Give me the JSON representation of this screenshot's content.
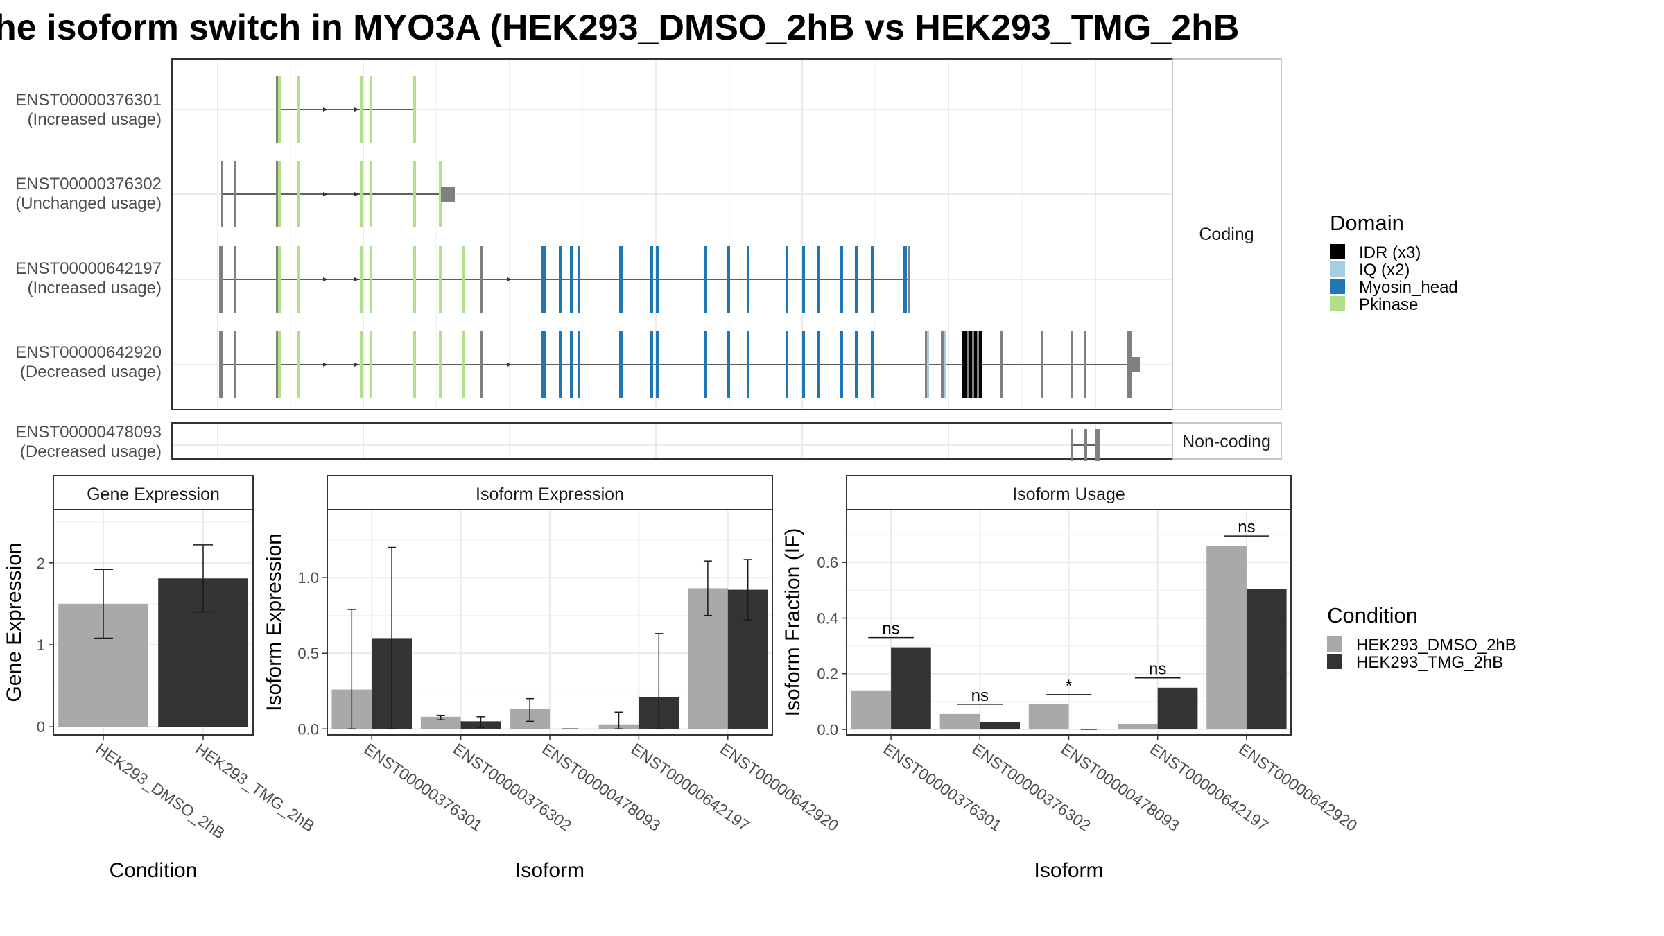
{
  "title": "he isoform switch in MYO3A (HEK293_DMSO_2hB vs HEK293_TMG_2hB",
  "colors": {
    "IDR": "#000000",
    "IQ": "#a6cee3",
    "Myosin_head": "#1f78b4",
    "Pkinase": "#b2df8a",
    "exon": "#808080",
    "DMSO": "#a9a9a9",
    "TMG": "#333333",
    "grid": "#ebebeb",
    "panel_border": "#333333",
    "strip_border": "#b3b3b3"
  },
  "transcripts": {
    "facets": [
      "Coding",
      "Non-coding"
    ],
    "rows": [
      {
        "id": "ENST00000376301",
        "usage": "(Increased usage)",
        "facet": "Coding"
      },
      {
        "id": "ENST00000376302",
        "usage": "(Unchanged usage)",
        "facet": "Coding"
      },
      {
        "id": "ENST00000642197",
        "usage": "(Increased usage)",
        "facet": "Coding"
      },
      {
        "id": "ENST00000642920",
        "usage": "(Decreased usage)",
        "facet": "Coding"
      },
      {
        "id": "ENST00000478093",
        "usage": "(Decreased usage)",
        "facet": "Non-coding"
      }
    ]
  },
  "legends": {
    "domain_title": "Domain",
    "domains": [
      {
        "label": "IDR (x3)",
        "color": "#000000"
      },
      {
        "label": "IQ (x2)",
        "color": "#a6cee3"
      },
      {
        "label": "Myosin_head",
        "color": "#1f78b4"
      },
      {
        "label": "Pkinase",
        "color": "#b2df8a"
      }
    ],
    "condition_title": "Condition",
    "conditions": [
      {
        "label": "HEK293_DMSO_2hB",
        "color": "#a9a9a9"
      },
      {
        "label": "HEK293_TMG_2hB",
        "color": "#333333"
      }
    ]
  },
  "chart_data": [
    {
      "type": "bar",
      "title": "Gene Expression",
      "xlabel": "Condition",
      "ylabel": "Gene Expression",
      "categories": [
        "HEK293_DMSO_2hB",
        "HEK293_TMG_2hB"
      ],
      "values": [
        1.5,
        1.81
      ],
      "error_low": [
        1.08,
        1.4
      ],
      "error_high": [
        1.92,
        2.22
      ],
      "ylim": [
        -0.1,
        2.65
      ],
      "yticks": [
        0,
        1,
        2
      ]
    },
    {
      "type": "bar",
      "title": "Isoform Expression",
      "xlabel": "Isoform",
      "ylabel": "Isoform Expression",
      "categories": [
        "ENST00000376301",
        "ENST00000376302",
        "ENST00000478093",
        "ENST00000642197",
        "ENST00000642920"
      ],
      "series": [
        {
          "name": "HEK293_DMSO_2hB",
          "values": [
            0.26,
            0.08,
            0.13,
            0.03,
            0.93
          ],
          "error_low": [
            0.0,
            0.06,
            0.05,
            0.0,
            0.75
          ],
          "error_high": [
            0.79,
            0.09,
            0.2,
            0.11,
            1.11
          ]
        },
        {
          "name": "HEK293_TMG_2hB",
          "values": [
            0.6,
            0.05,
            0.0,
            0.21,
            0.92
          ],
          "error_low": [
            0.0,
            0.01,
            0.0,
            0.0,
            0.72
          ],
          "error_high": [
            1.2,
            0.08,
            0.0,
            0.63,
            1.12
          ]
        }
      ],
      "ylim": [
        -0.04,
        1.45
      ],
      "yticks": [
        0.0,
        0.5,
        1.0
      ]
    },
    {
      "type": "bar",
      "title": "Isoform Usage",
      "xlabel": "Isoform",
      "ylabel": "Isoform Fraction (IF)",
      "categories": [
        "ENST00000376301",
        "ENST00000376302",
        "ENST00000478093",
        "ENST00000642197",
        "ENST00000642920"
      ],
      "series": [
        {
          "name": "HEK293_DMSO_2hB",
          "values": [
            0.14,
            0.055,
            0.09,
            0.02,
            0.66
          ]
        },
        {
          "name": "HEK293_TMG_2hB",
          "values": [
            0.295,
            0.025,
            0.0,
            0.15,
            0.505
          ]
        }
      ],
      "annotations": [
        "ns",
        "ns",
        "*",
        "ns",
        "ns"
      ],
      "annotation_y": [
        0.33,
        0.09,
        0.125,
        0.185,
        0.695
      ],
      "ylim": [
        -0.02,
        0.79
      ],
      "yticks": [
        0.0,
        0.2,
        0.4,
        0.6
      ]
    }
  ]
}
